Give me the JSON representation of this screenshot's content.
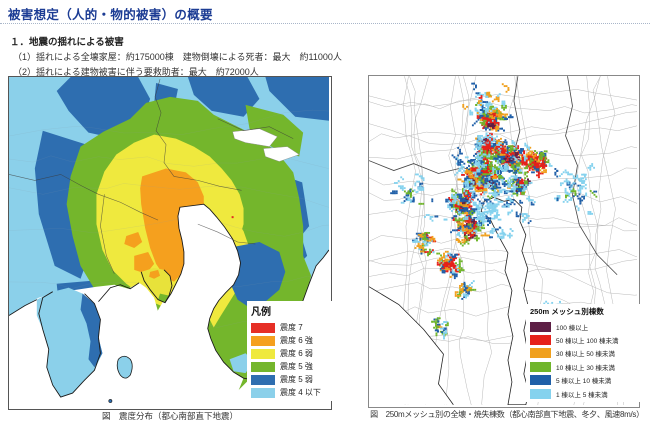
{
  "header": {
    "title": "被害想定（人的・物的被害）の概要",
    "section": "１．地震の揺れによる被害",
    "item1": "（1）揺れによる全壊家屋：約175000棟　建物倒壊による死者：最大　約11000人",
    "item2": "（2）揺れによる建物被害に伴う要救助者：最大　約72000人"
  },
  "left_map": {
    "caption": "図　震度分布（都心南部直下地震）",
    "legend_title": "凡例",
    "legend": [
      {
        "label": "震度 7",
        "color": "#e62f26"
      },
      {
        "label": "震度 6 強",
        "color": "#f5a01e"
      },
      {
        "label": "震度 6 弱",
        "color": "#efe93e"
      },
      {
        "label": "震度 5 強",
        "color": "#74b62c"
      },
      {
        "label": "震度 5 弱",
        "color": "#2e6eb0"
      },
      {
        "label": "震度 4 以下",
        "color": "#8bd0ea"
      }
    ]
  },
  "right_map": {
    "caption": "図　250mメッシュ別の全壊・焼失棟数（都心南部直下地震、冬夕、風速8m/s）",
    "legend_title": "250m メッシュ別棟数",
    "legend": [
      {
        "label": "100 棟以上",
        "color": "#5e1f45"
      },
      {
        "label": "50 棟以上 100 棟未満",
        "color": "#e6211a"
      },
      {
        "label": "30 棟以上 50 棟未満",
        "color": "#f0a01e"
      },
      {
        "label": "10 棟以上 30 棟未満",
        "color": "#6fb52a"
      },
      {
        "label": "5 棟以上 10 棟未満",
        "color": "#1f5fa8"
      },
      {
        "label": "1 棟以上 5 棟未満",
        "color": "#85d2ee"
      }
    ]
  }
}
